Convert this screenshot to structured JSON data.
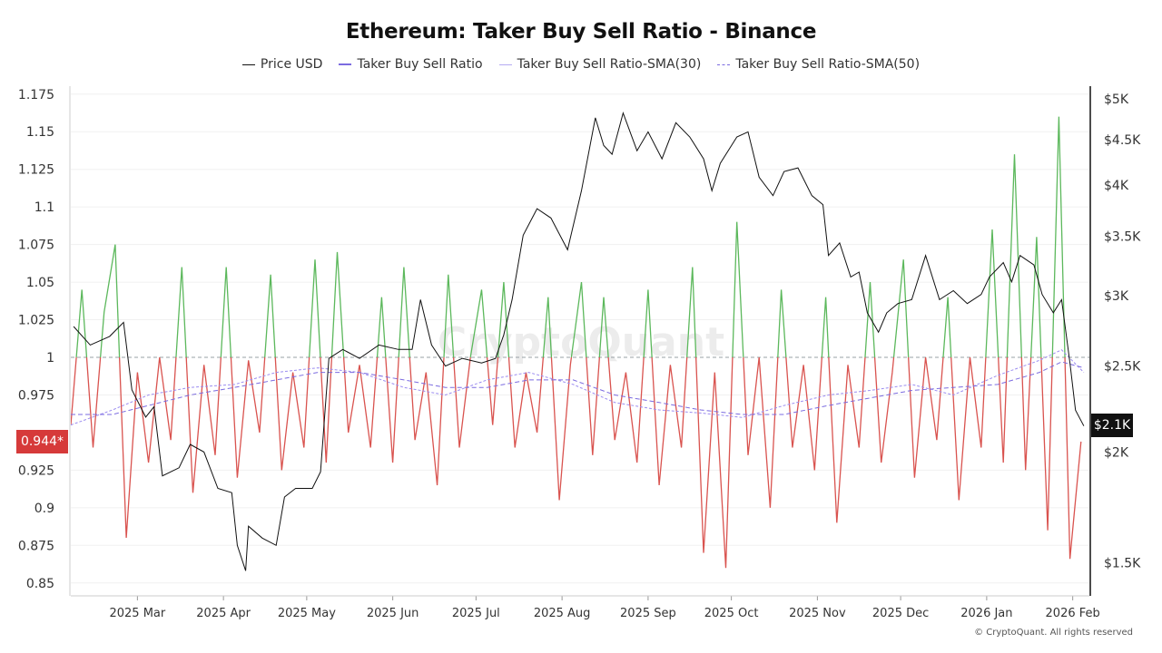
{
  "chart_data": {
    "type": "line",
    "title": "Ethereum: Taker Buy Sell Ratio - Binance",
    "legend_position": "top",
    "grid": true,
    "watermark": "CryptoQuant",
    "footer": "© CryptoQuant. All rights reserved",
    "xlim": [
      "2025-02-05",
      "2026-02-07"
    ],
    "x_ticks": [
      {
        "date": "2025-03-01",
        "label": "2025 Mar"
      },
      {
        "date": "2025-04-01",
        "label": "2025 Apr"
      },
      {
        "date": "2025-05-01",
        "label": "2025 May"
      },
      {
        "date": "2025-06-01",
        "label": "2025 Jun"
      },
      {
        "date": "2025-07-01",
        "label": "2025 Jul"
      },
      {
        "date": "2025-08-01",
        "label": "2025 Aug"
      },
      {
        "date": "2025-09-01",
        "label": "2025 Sep"
      },
      {
        "date": "2025-10-01",
        "label": "2025 Oct"
      },
      {
        "date": "2025-11-01",
        "label": "2025 Nov"
      },
      {
        "date": "2025-12-01",
        "label": "2025 Dec"
      },
      {
        "date": "2026-01-01",
        "label": "2026 Jan"
      },
      {
        "date": "2026-02-01",
        "label": "2026 Feb"
      }
    ],
    "y_left": {
      "min": 0.85,
      "max": 1.175,
      "reference": 1,
      "ticks": [
        {
          "v": 1.175,
          "label": "1.175"
        },
        {
          "v": 1.15,
          "label": "1.15"
        },
        {
          "v": 1.125,
          "label": "1.125"
        },
        {
          "v": 1.1,
          "label": "1.1"
        },
        {
          "v": 1.075,
          "label": "1.075"
        },
        {
          "v": 1.05,
          "label": "1.05"
        },
        {
          "v": 1.025,
          "label": "1.025"
        },
        {
          "v": 1,
          "label": "1"
        },
        {
          "v": 0.975,
          "label": "0.975"
        },
        {
          "v": 0.925,
          "label": "0.925"
        },
        {
          "v": 0.9,
          "label": "0.9"
        },
        {
          "v": 0.875,
          "label": "0.875"
        },
        {
          "v": 0.85,
          "label": "0.85"
        }
      ],
      "last_value_label": "0.944*"
    },
    "y_right": {
      "scale": "log",
      "min": 1350,
      "max": 5150,
      "ticks": [
        {
          "v": 5000,
          "label": "$5K"
        },
        {
          "v": 4500,
          "label": "$4.5K"
        },
        {
          "v": 4000,
          "label": "$4K"
        },
        {
          "v": 3500,
          "label": "$3.5K"
        },
        {
          "v": 3000,
          "label": "$3K"
        },
        {
          "v": 2500,
          "label": "$2.5K"
        },
        {
          "v": 2000,
          "label": "$2K"
        },
        {
          "v": 1500,
          "label": "$1.5K"
        }
      ],
      "last_value_label": "$2.1K"
    },
    "colors": {
      "price": "#111111",
      "ratio_above": "#5cb85c",
      "ratio_below": "#d9534f",
      "sma30": "#9b8cf0",
      "sma50": "#7b6be0",
      "reference": "#9aa0a6"
    },
    "series": [
      {
        "name": "Price USD",
        "axis": "right",
        "points": [
          [
            "2025-02-06",
            2770
          ],
          [
            "2025-02-12",
            2640
          ],
          [
            "2025-02-19",
            2700
          ],
          [
            "2025-02-24",
            2800
          ],
          [
            "2025-02-27",
            2350
          ],
          [
            "2025-03-04",
            2190
          ],
          [
            "2025-03-07",
            2250
          ],
          [
            "2025-03-10",
            1880
          ],
          [
            "2025-03-16",
            1920
          ],
          [
            "2025-03-20",
            2040
          ],
          [
            "2025-03-25",
            2000
          ],
          [
            "2025-03-30",
            1820
          ],
          [
            "2025-04-04",
            1800
          ],
          [
            "2025-04-06",
            1570
          ],
          [
            "2025-04-09",
            1470
          ],
          [
            "2025-04-10",
            1650
          ],
          [
            "2025-04-15",
            1600
          ],
          [
            "2025-04-20",
            1570
          ],
          [
            "2025-04-23",
            1780
          ],
          [
            "2025-04-27",
            1820
          ],
          [
            "2025-05-03",
            1820
          ],
          [
            "2025-05-06",
            1900
          ],
          [
            "2025-05-09",
            2550
          ],
          [
            "2025-05-14",
            2610
          ],
          [
            "2025-05-20",
            2550
          ],
          [
            "2025-05-27",
            2640
          ],
          [
            "2025-06-03",
            2610
          ],
          [
            "2025-06-08",
            2610
          ],
          [
            "2025-06-11",
            2970
          ],
          [
            "2025-06-15",
            2640
          ],
          [
            "2025-06-20",
            2500
          ],
          [
            "2025-06-26",
            2550
          ],
          [
            "2025-07-03",
            2520
          ],
          [
            "2025-07-08",
            2550
          ],
          [
            "2025-07-11",
            2710
          ],
          [
            "2025-07-14",
            2970
          ],
          [
            "2025-07-18",
            3510
          ],
          [
            "2025-07-23",
            3760
          ],
          [
            "2025-07-28",
            3670
          ],
          [
            "2025-08-03",
            3380
          ],
          [
            "2025-08-08",
            3940
          ],
          [
            "2025-08-13",
            4760
          ],
          [
            "2025-08-16",
            4430
          ],
          [
            "2025-08-19",
            4330
          ],
          [
            "2025-08-23",
            4820
          ],
          [
            "2025-08-28",
            4370
          ],
          [
            "2025-09-01",
            4590
          ],
          [
            "2025-09-06",
            4280
          ],
          [
            "2025-09-11",
            4700
          ],
          [
            "2025-09-16",
            4530
          ],
          [
            "2025-09-21",
            4280
          ],
          [
            "2025-09-24",
            3940
          ],
          [
            "2025-09-27",
            4230
          ],
          [
            "2025-10-03",
            4530
          ],
          [
            "2025-10-07",
            4590
          ],
          [
            "2025-10-11",
            4080
          ],
          [
            "2025-10-16",
            3890
          ],
          [
            "2025-10-20",
            4140
          ],
          [
            "2025-10-25",
            4180
          ],
          [
            "2025-10-30",
            3890
          ],
          [
            "2025-11-03",
            3800
          ],
          [
            "2025-11-05",
            3330
          ],
          [
            "2025-11-09",
            3440
          ],
          [
            "2025-11-13",
            3150
          ],
          [
            "2025-11-16",
            3190
          ],
          [
            "2025-11-19",
            2870
          ],
          [
            "2025-11-23",
            2730
          ],
          [
            "2025-11-26",
            2870
          ],
          [
            "2025-11-30",
            2940
          ],
          [
            "2025-12-05",
            2970
          ],
          [
            "2025-12-10",
            3330
          ],
          [
            "2025-12-15",
            2970
          ],
          [
            "2025-12-20",
            3040
          ],
          [
            "2025-12-25",
            2940
          ],
          [
            "2025-12-30",
            3010
          ],
          [
            "2026-01-02",
            3150
          ],
          [
            "2026-01-07",
            3270
          ],
          [
            "2026-01-10",
            3110
          ],
          [
            "2026-01-13",
            3330
          ],
          [
            "2026-01-18",
            3250
          ],
          [
            "2026-01-21",
            3010
          ],
          [
            "2026-01-25",
            2870
          ],
          [
            "2026-01-28",
            2970
          ],
          [
            "2026-01-31",
            2520
          ],
          [
            "2026-02-02",
            2230
          ],
          [
            "2026-02-05",
            2140
          ]
        ]
      },
      {
        "name": "Taker Buy Sell Ratio",
        "axis": "left",
        "points": [
          [
            "2025-02-05",
            0.955
          ],
          [
            "2025-02-09",
            1.045
          ],
          [
            "2025-02-13",
            0.94
          ],
          [
            "2025-02-17",
            1.03
          ],
          [
            "2025-02-21",
            1.075
          ],
          [
            "2025-02-25",
            0.88
          ],
          [
            "2025-03-01",
            0.99
          ],
          [
            "2025-03-05",
            0.93
          ],
          [
            "2025-03-09",
            1.0
          ],
          [
            "2025-03-13",
            0.945
          ],
          [
            "2025-03-17",
            1.06
          ],
          [
            "2025-03-21",
            0.91
          ],
          [
            "2025-03-25",
            0.995
          ],
          [
            "2025-03-29",
            0.935
          ],
          [
            "2025-04-02",
            1.06
          ],
          [
            "2025-04-06",
            0.92
          ],
          [
            "2025-04-10",
            0.998
          ],
          [
            "2025-04-14",
            0.95
          ],
          [
            "2025-04-18",
            1.055
          ],
          [
            "2025-04-22",
            0.925
          ],
          [
            "2025-04-26",
            0.99
          ],
          [
            "2025-04-30",
            0.94
          ],
          [
            "2025-05-04",
            1.065
          ],
          [
            "2025-05-08",
            0.93
          ],
          [
            "2025-05-12",
            1.07
          ],
          [
            "2025-05-16",
            0.95
          ],
          [
            "2025-05-20",
            0.995
          ],
          [
            "2025-05-24",
            0.94
          ],
          [
            "2025-05-28",
            1.04
          ],
          [
            "2025-06-01",
            0.93
          ],
          [
            "2025-06-05",
            1.06
          ],
          [
            "2025-06-09",
            0.945
          ],
          [
            "2025-06-13",
            0.99
          ],
          [
            "2025-06-17",
            0.915
          ],
          [
            "2025-06-21",
            1.055
          ],
          [
            "2025-06-25",
            0.94
          ],
          [
            "2025-06-29",
            1.0
          ],
          [
            "2025-07-03",
            1.045
          ],
          [
            "2025-07-07",
            0.955
          ],
          [
            "2025-07-11",
            1.05
          ],
          [
            "2025-07-15",
            0.94
          ],
          [
            "2025-07-19",
            0.99
          ],
          [
            "2025-07-23",
            0.95
          ],
          [
            "2025-07-27",
            1.04
          ],
          [
            "2025-07-31",
            0.905
          ],
          [
            "2025-08-04",
            0.995
          ],
          [
            "2025-08-08",
            1.05
          ],
          [
            "2025-08-12",
            0.935
          ],
          [
            "2025-08-16",
            1.04
          ],
          [
            "2025-08-20",
            0.945
          ],
          [
            "2025-08-24",
            0.99
          ],
          [
            "2025-08-28",
            0.93
          ],
          [
            "2025-09-01",
            1.045
          ],
          [
            "2025-09-05",
            0.915
          ],
          [
            "2025-09-09",
            0.995
          ],
          [
            "2025-09-13",
            0.94
          ],
          [
            "2025-09-17",
            1.06
          ],
          [
            "2025-09-21",
            0.87
          ],
          [
            "2025-09-25",
            0.99
          ],
          [
            "2025-09-29",
            0.86
          ],
          [
            "2025-10-03",
            1.09
          ],
          [
            "2025-10-07",
            0.935
          ],
          [
            "2025-10-11",
            1.0
          ],
          [
            "2025-10-15",
            0.9
          ],
          [
            "2025-10-19",
            1.045
          ],
          [
            "2025-10-23",
            0.94
          ],
          [
            "2025-10-27",
            0.995
          ],
          [
            "2025-10-31",
            0.925
          ],
          [
            "2025-11-04",
            1.04
          ],
          [
            "2025-11-08",
            0.89
          ],
          [
            "2025-11-12",
            0.995
          ],
          [
            "2025-11-16",
            0.94
          ],
          [
            "2025-11-20",
            1.05
          ],
          [
            "2025-11-24",
            0.93
          ],
          [
            "2025-11-28",
            0.99
          ],
          [
            "2025-12-02",
            1.065
          ],
          [
            "2025-12-06",
            0.92
          ],
          [
            "2025-12-10",
            1.0
          ],
          [
            "2025-12-14",
            0.945
          ],
          [
            "2025-12-18",
            1.04
          ],
          [
            "2025-12-22",
            0.905
          ],
          [
            "2025-12-26",
            1.0
          ],
          [
            "2025-12-30",
            0.94
          ],
          [
            "2026-01-03",
            1.085
          ],
          [
            "2026-01-07",
            0.93
          ],
          [
            "2026-01-11",
            1.135
          ],
          [
            "2026-01-15",
            0.925
          ],
          [
            "2026-01-19",
            1.08
          ],
          [
            "2026-01-23",
            0.885
          ],
          [
            "2026-01-27",
            1.16
          ],
          [
            "2026-01-31",
            0.866
          ],
          [
            "2026-02-04",
            0.944
          ]
        ]
      },
      {
        "name": "Taker Buy Sell Ratio-SMA(30)",
        "axis": "left",
        "points": [
          [
            "2025-02-05",
            0.955
          ],
          [
            "2025-02-20",
            0.965
          ],
          [
            "2025-03-05",
            0.975
          ],
          [
            "2025-03-20",
            0.98
          ],
          [
            "2025-04-05",
            0.982
          ],
          [
            "2025-04-20",
            0.99
          ],
          [
            "2025-05-05",
            0.993
          ],
          [
            "2025-05-20",
            0.99
          ],
          [
            "2025-06-05",
            0.98
          ],
          [
            "2025-06-20",
            0.975
          ],
          [
            "2025-07-05",
            0.985
          ],
          [
            "2025-07-20",
            0.99
          ],
          [
            "2025-08-05",
            0.982
          ],
          [
            "2025-08-20",
            0.97
          ],
          [
            "2025-09-05",
            0.965
          ],
          [
            "2025-09-20",
            0.963
          ],
          [
            "2025-10-05",
            0.96
          ],
          [
            "2025-10-20",
            0.968
          ],
          [
            "2025-11-05",
            0.975
          ],
          [
            "2025-11-20",
            0.978
          ],
          [
            "2025-12-05",
            0.982
          ],
          [
            "2025-12-20",
            0.975
          ],
          [
            "2026-01-05",
            0.988
          ],
          [
            "2026-01-20",
            0.998
          ],
          [
            "2026-01-28",
            1.005
          ],
          [
            "2026-02-05",
            0.99
          ]
        ]
      },
      {
        "name": "Taker Buy Sell Ratio-SMA(50)",
        "axis": "left",
        "points": [
          [
            "2025-02-05",
            0.962
          ],
          [
            "2025-02-20",
            0.962
          ],
          [
            "2025-03-05",
            0.968
          ],
          [
            "2025-03-20",
            0.975
          ],
          [
            "2025-04-05",
            0.98
          ],
          [
            "2025-04-20",
            0.985
          ],
          [
            "2025-05-05",
            0.99
          ],
          [
            "2025-05-20",
            0.99
          ],
          [
            "2025-06-05",
            0.985
          ],
          [
            "2025-06-20",
            0.98
          ],
          [
            "2025-07-05",
            0.98
          ],
          [
            "2025-07-20",
            0.985
          ],
          [
            "2025-08-05",
            0.985
          ],
          [
            "2025-08-20",
            0.975
          ],
          [
            "2025-09-05",
            0.97
          ],
          [
            "2025-09-20",
            0.965
          ],
          [
            "2025-10-05",
            0.962
          ],
          [
            "2025-10-20",
            0.962
          ],
          [
            "2025-11-05",
            0.968
          ],
          [
            "2025-11-20",
            0.973
          ],
          [
            "2025-12-05",
            0.978
          ],
          [
            "2025-12-20",
            0.98
          ],
          [
            "2026-01-05",
            0.982
          ],
          [
            "2026-01-20",
            0.99
          ],
          [
            "2026-01-28",
            0.997
          ],
          [
            "2026-02-05",
            0.993
          ]
        ]
      }
    ]
  }
}
